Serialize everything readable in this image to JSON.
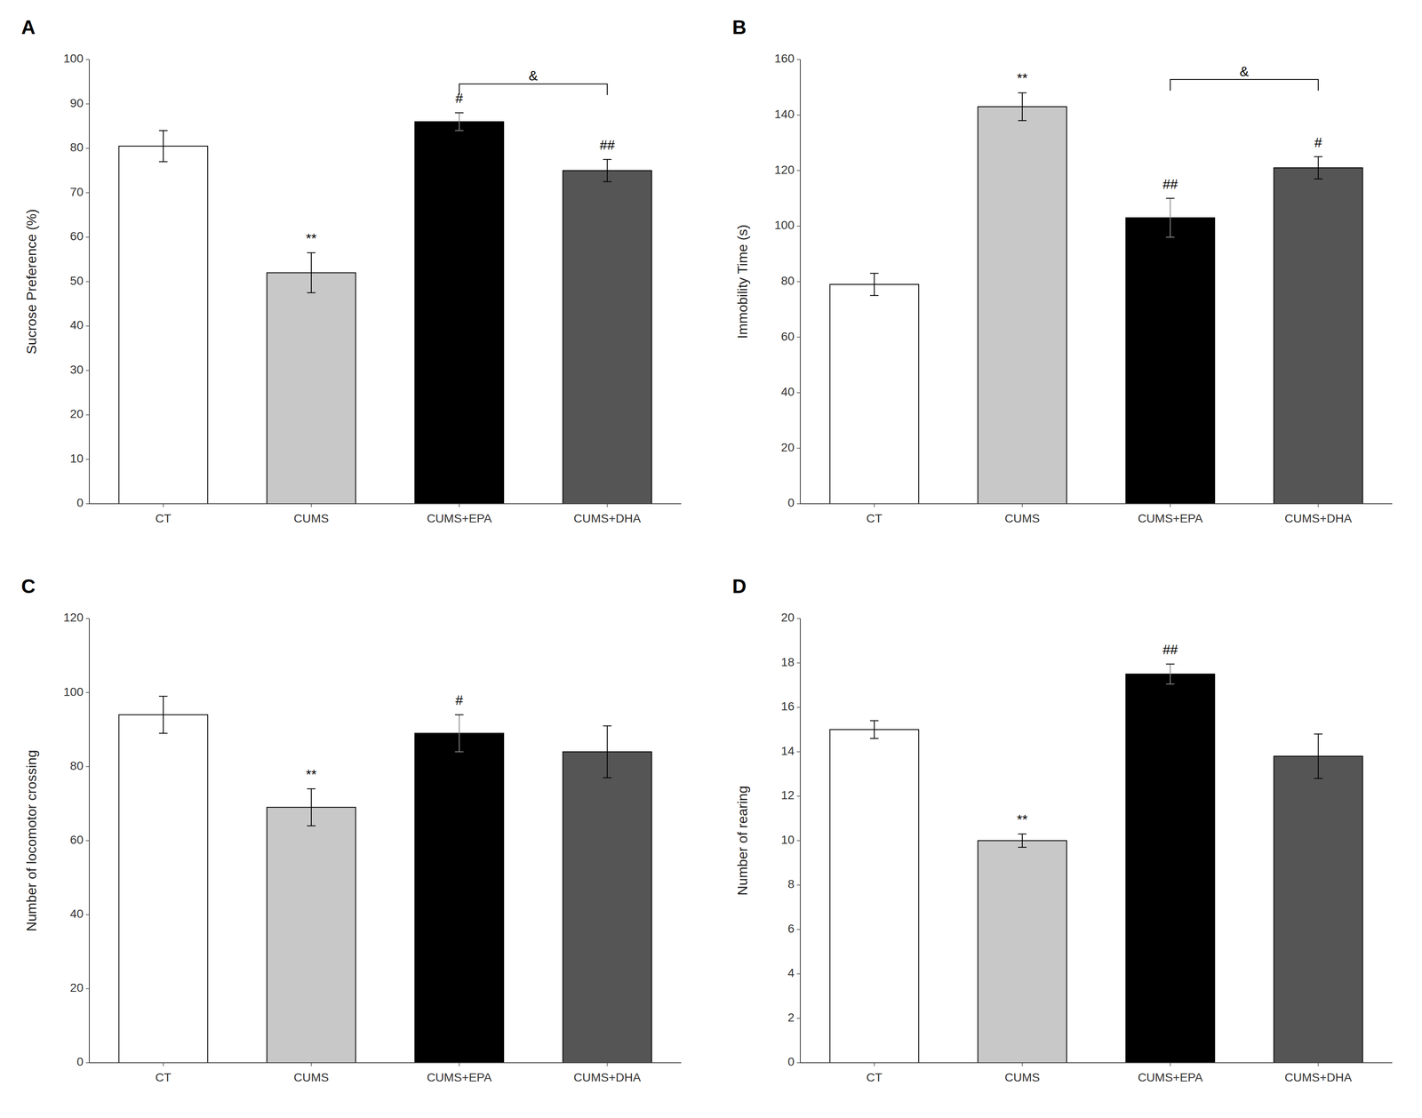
{
  "chart_data": [
    {
      "type": "bar",
      "title": "A",
      "ylabel": "Sucrose Preference  (%)",
      "categories": [
        "CT",
        "CUMS",
        "CUMS+EPA",
        "CUMS+DHA"
      ],
      "values": [
        80.5,
        52.0,
        86.0,
        75.0
      ],
      "errors": [
        3.5,
        4.5,
        2.0,
        2.5
      ],
      "colors": [
        "#ffffff",
        "#c8c8c8",
        "#000000",
        "#555555"
      ],
      "ylim": [
        0,
        100
      ],
      "yticks": [
        0,
        10,
        20,
        30,
        40,
        50,
        60,
        70,
        80,
        90,
        100
      ],
      "grid": false,
      "annotations": [
        {
          "category": "CUMS",
          "text": "**"
        },
        {
          "category": "CUMS+EPA",
          "text": "#"
        },
        {
          "category": "CUMS+DHA",
          "text": "##"
        }
      ],
      "bracket": {
        "from": "CUMS+EPA",
        "to": "CUMS+DHA",
        "y": 94.5,
        "text": "&"
      }
    },
    {
      "type": "bar",
      "title": "B",
      "ylabel": "Immobility Time (s)",
      "categories": [
        "CT",
        "CUMS",
        "CUMS+EPA",
        "CUMS+DHA"
      ],
      "values": [
        79.0,
        143.0,
        103.0,
        121.0
      ],
      "errors": [
        4.0,
        5.0,
        7.0,
        4.0
      ],
      "colors": [
        "#ffffff",
        "#c8c8c8",
        "#000000",
        "#555555"
      ],
      "ylim": [
        0,
        160
      ],
      "yticks": [
        0,
        20,
        40,
        60,
        80,
        100,
        120,
        140,
        160
      ],
      "grid": false,
      "annotations": [
        {
          "category": "CUMS",
          "text": "**"
        },
        {
          "category": "CUMS+EPA",
          "text": "##"
        },
        {
          "category": "CUMS+DHA",
          "text": "#"
        }
      ],
      "bracket": {
        "from": "CUMS+EPA",
        "to": "CUMS+DHA",
        "y": 152.8,
        "text": "&"
      }
    },
    {
      "type": "bar",
      "title": "C",
      "ylabel": "Number of locomotor crossing",
      "categories": [
        "CT",
        "CUMS",
        "CUMS+EPA",
        "CUMS+DHA"
      ],
      "values": [
        94.0,
        69.0,
        89.0,
        84.0
      ],
      "errors": [
        5.0,
        5.0,
        5.0,
        7.0
      ],
      "colors": [
        "#ffffff",
        "#c8c8c8",
        "#000000",
        "#555555"
      ],
      "ylim": [
        0,
        120
      ],
      "yticks": [
        0,
        20,
        40,
        60,
        80,
        100,
        120
      ],
      "grid": false,
      "annotations": [
        {
          "category": "CUMS",
          "text": "**"
        },
        {
          "category": "CUMS+EPA",
          "text": "#"
        }
      ]
    },
    {
      "type": "bar",
      "title": "D",
      "ylabel": "Number of rearing",
      "categories": [
        "CT",
        "CUMS",
        "CUMS+EPA",
        "CUMS+DHA"
      ],
      "values": [
        15.0,
        10.0,
        17.5,
        13.8
      ],
      "errors": [
        0.4,
        0.3,
        0.45,
        1.0
      ],
      "colors": [
        "#ffffff",
        "#c8c8c8",
        "#000000",
        "#555555"
      ],
      "ylim": [
        0,
        20
      ],
      "yticks": [
        0,
        2,
        4,
        6,
        8,
        10,
        12,
        14,
        16,
        18,
        20
      ],
      "grid": false,
      "annotations": [
        {
          "category": "CUMS",
          "text": "**"
        },
        {
          "category": "CUMS+EPA",
          "text": "##"
        }
      ]
    }
  ]
}
